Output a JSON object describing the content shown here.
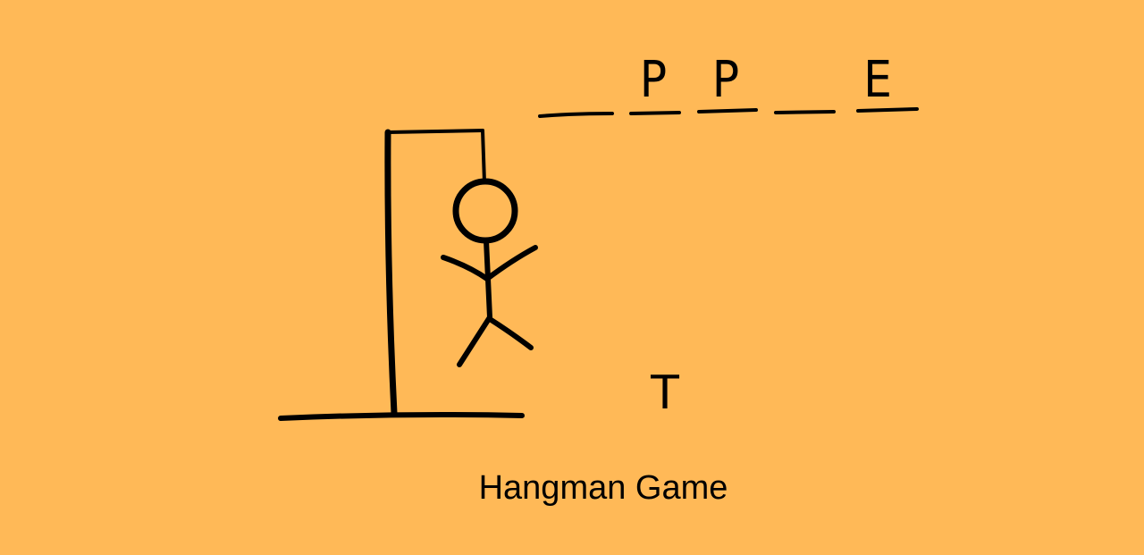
{
  "colors": {
    "background": "#ffb957",
    "ink": "#000000"
  },
  "game": {
    "title": "Hangman Game",
    "revealed_letters": [
      "",
      "P",
      "P",
      "",
      "E"
    ],
    "wrong_guesses": [
      "T"
    ],
    "hangman_stage": "full-body"
  }
}
